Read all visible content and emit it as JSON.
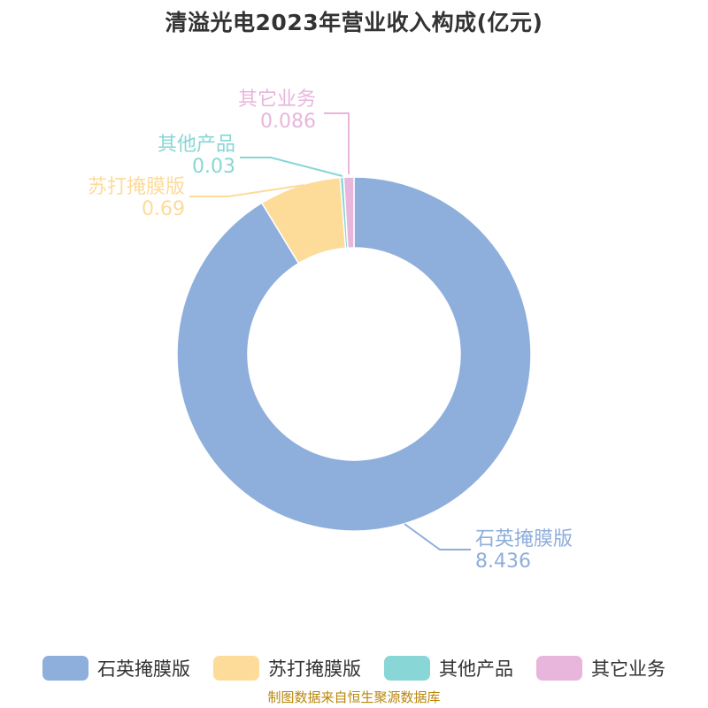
{
  "chart_data": {
    "type": "pie",
    "title": "清溢光电2023年营业收入构成(亿元)",
    "categories": [
      "石英掩膜版",
      "苏打掩膜版",
      "其他产品",
      "其它业务"
    ],
    "values": [
      8.436,
      0.69,
      0.03,
      0.086
    ],
    "value_labels": [
      "8.436",
      "0.69",
      "0.03",
      "0.086"
    ],
    "colors": [
      "#8eaedb",
      "#fddb99",
      "#88d6d6",
      "#e8b6dc"
    ],
    "donut": true,
    "legend_position": "bottom"
  },
  "legend": {
    "items": [
      {
        "label": "石英掩膜版",
        "color": "#8eaedb"
      },
      {
        "label": "苏打掩膜版",
        "color": "#fddb99"
      },
      {
        "label": "其他产品",
        "color": "#88d6d6"
      },
      {
        "label": "其它业务",
        "color": "#e8b6dc"
      }
    ]
  },
  "footer": {
    "source": "制图数据来自恒生聚源数据库"
  }
}
